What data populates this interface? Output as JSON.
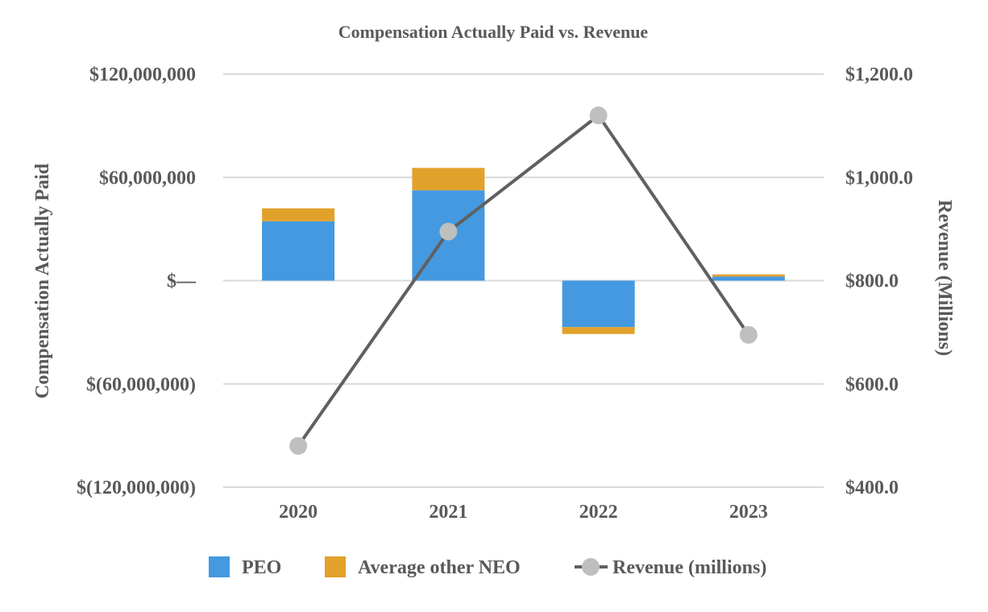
{
  "chart_data": {
    "type": "bar",
    "title": "Compensation Actually Paid vs. Revenue",
    "categories": [
      "2020",
      "2021",
      "2022",
      "2023"
    ],
    "ylabel": "Compensation Actually Paid",
    "y2label": "Revenue (Millions)",
    "ylim": [
      -120000000,
      120000000
    ],
    "y2lim": [
      400,
      1200
    ],
    "yticks": [
      -120000000,
      -60000000,
      0,
      60000000,
      120000000
    ],
    "yticklabels": [
      "$(120,000,000)",
      "$(60,000,000)",
      "$—",
      "$60,000,000",
      "$120,000,000"
    ],
    "y2ticks": [
      400,
      600,
      800,
      1000,
      1200
    ],
    "y2ticklabels": [
      "$400.0",
      "$600.0",
      "$800.0",
      "$1,000.0",
      "$1,200.0"
    ],
    "grid": true,
    "legend_position": "bottom",
    "series": [
      {
        "name": "PEO",
        "type": "stacked-bar",
        "axis": "left",
        "color": "#4499E0",
        "values": [
          34500000,
          52500000,
          -27000000,
          2400000
        ]
      },
      {
        "name": "Average other NEO",
        "type": "stacked-bar",
        "axis": "left",
        "color": "#E2A12B",
        "values": [
          7500000,
          13000000,
          -4000000,
          1200000
        ]
      },
      {
        "name": "Revenue (millions)",
        "type": "line",
        "axis": "right",
        "color": "#606060",
        "marker_color": "#BFBFBF",
        "values": [
          480,
          895,
          1120,
          695
        ]
      }
    ]
  }
}
